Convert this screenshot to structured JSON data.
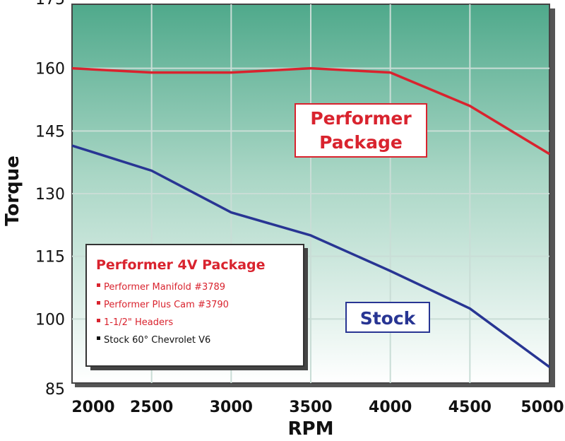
{
  "chart_data": {
    "type": "line",
    "title": "",
    "xlabel": "RPM",
    "ylabel": "Torque",
    "x": [
      2000,
      2500,
      3000,
      3500,
      4000,
      4500,
      5000
    ],
    "xlim": [
      2000,
      5000
    ],
    "ylim": [
      85,
      175
    ],
    "yticks": [
      85,
      100,
      115,
      130,
      145,
      160,
      175
    ],
    "grid": true,
    "series": [
      {
        "name": "Performer Package",
        "color": "#d9232e",
        "values": [
          160,
          159,
          159,
          160,
          159,
          151,
          139.5
        ]
      },
      {
        "name": "Stock",
        "color": "#283593",
        "values": [
          141.5,
          135.5,
          125.5,
          120,
          111.5,
          102.5,
          88.5
        ]
      }
    ],
    "legend": {
      "placement": "bottom-left",
      "title": "Performer 4V Package",
      "items": [
        {
          "text": "Performer Manifold #3789",
          "color": "#d9232e"
        },
        {
          "text": "Performer Plus Cam #3790",
          "color": "#d9232e"
        },
        {
          "text": "1-1/2\" Headers",
          "color": "#d9232e"
        },
        {
          "text": "Stock 60° Chevrolet V6",
          "color": "#111111"
        }
      ]
    },
    "annotations": [
      {
        "text_lines": [
          "Performer",
          "Package"
        ],
        "color": "#d9232e"
      },
      {
        "text_lines": [
          "Stock"
        ],
        "color": "#283593"
      }
    ]
  }
}
